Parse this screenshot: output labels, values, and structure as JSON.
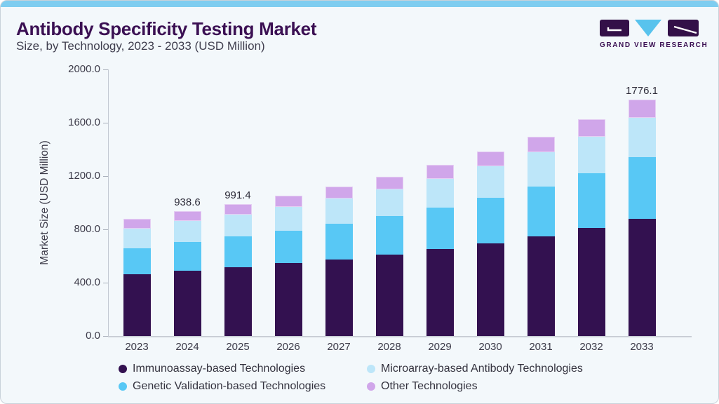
{
  "header": {
    "title": "Antibody Specificity Testing Market",
    "subtitle": "Size, by Technology, 2023 - 2033 (USD Million)"
  },
  "logo": {
    "text": "GRAND VIEW RESEARCH",
    "mark_purple": "#331048",
    "mark_blue": "#58c3ed"
  },
  "colors": {
    "card_background": "#f3f8fb",
    "top_strip": "#7ecdf0",
    "title": "#3b1053",
    "axis_text": "#3c3b49",
    "axis_line": "#c3c9d2"
  },
  "chart_data": {
    "type": "bar",
    "stacked": true,
    "title": "Antibody Specificity Testing Market Size, by Technology, 2023 - 2033 (USD Million)",
    "xlabel": "",
    "ylabel": "Market Size (USD Million)",
    "ylim": [
      0,
      2000
    ],
    "ytick_step": 400,
    "ytick_labels": [
      "0.0",
      "400.0",
      "800.0",
      "1200.0",
      "1600.0",
      "2000.0"
    ],
    "grid": false,
    "legend_position": "bottom",
    "categories": [
      "2023",
      "2024",
      "2025",
      "2026",
      "2027",
      "2028",
      "2029",
      "2030",
      "2031",
      "2032",
      "2033"
    ],
    "series": [
      {
        "name": "Immunoassay-based Technologies",
        "color": "#331150",
        "values": [
          461.5,
          491.5,
          517.0,
          546.0,
          575.0,
          610.0,
          653.5,
          694.5,
          748.5,
          810.0,
          878.0
        ]
      },
      {
        "name": "Genetic Validation-based Technologies",
        "color": "#58c8f5",
        "values": [
          198.5,
          214.5,
          230.0,
          246.0,
          265.0,
          288.5,
          310.0,
          344.0,
          375.0,
          413.5,
          463.0
        ]
      },
      {
        "name": "Microarray-based Antibody Technologies",
        "color": "#bde6f9",
        "values": [
          144.0,
          156.0,
          162.0,
          177.0,
          193.5,
          200.0,
          215.0,
          235.0,
          255.0,
          273.0,
          294.0
        ]
      },
      {
        "name": "Other Technologies",
        "color": "#d0a6ea",
        "values": [
          72.5,
          76.6,
          82.4,
          85.0,
          88.0,
          96.5,
          106.5,
          110.0,
          118.0,
          130.0,
          141.1
        ]
      }
    ],
    "totals_shown": [
      {
        "category": "2024",
        "label": "938.6"
      },
      {
        "category": "2025",
        "label": "991.4"
      },
      {
        "category": "2033",
        "label": "1776.1"
      }
    ],
    "legend_order": [
      "Immunoassay-based Technologies",
      "Microarray-based Antibody Technologies",
      "Genetic Validation-based Technologies",
      "Other Technologies"
    ]
  }
}
